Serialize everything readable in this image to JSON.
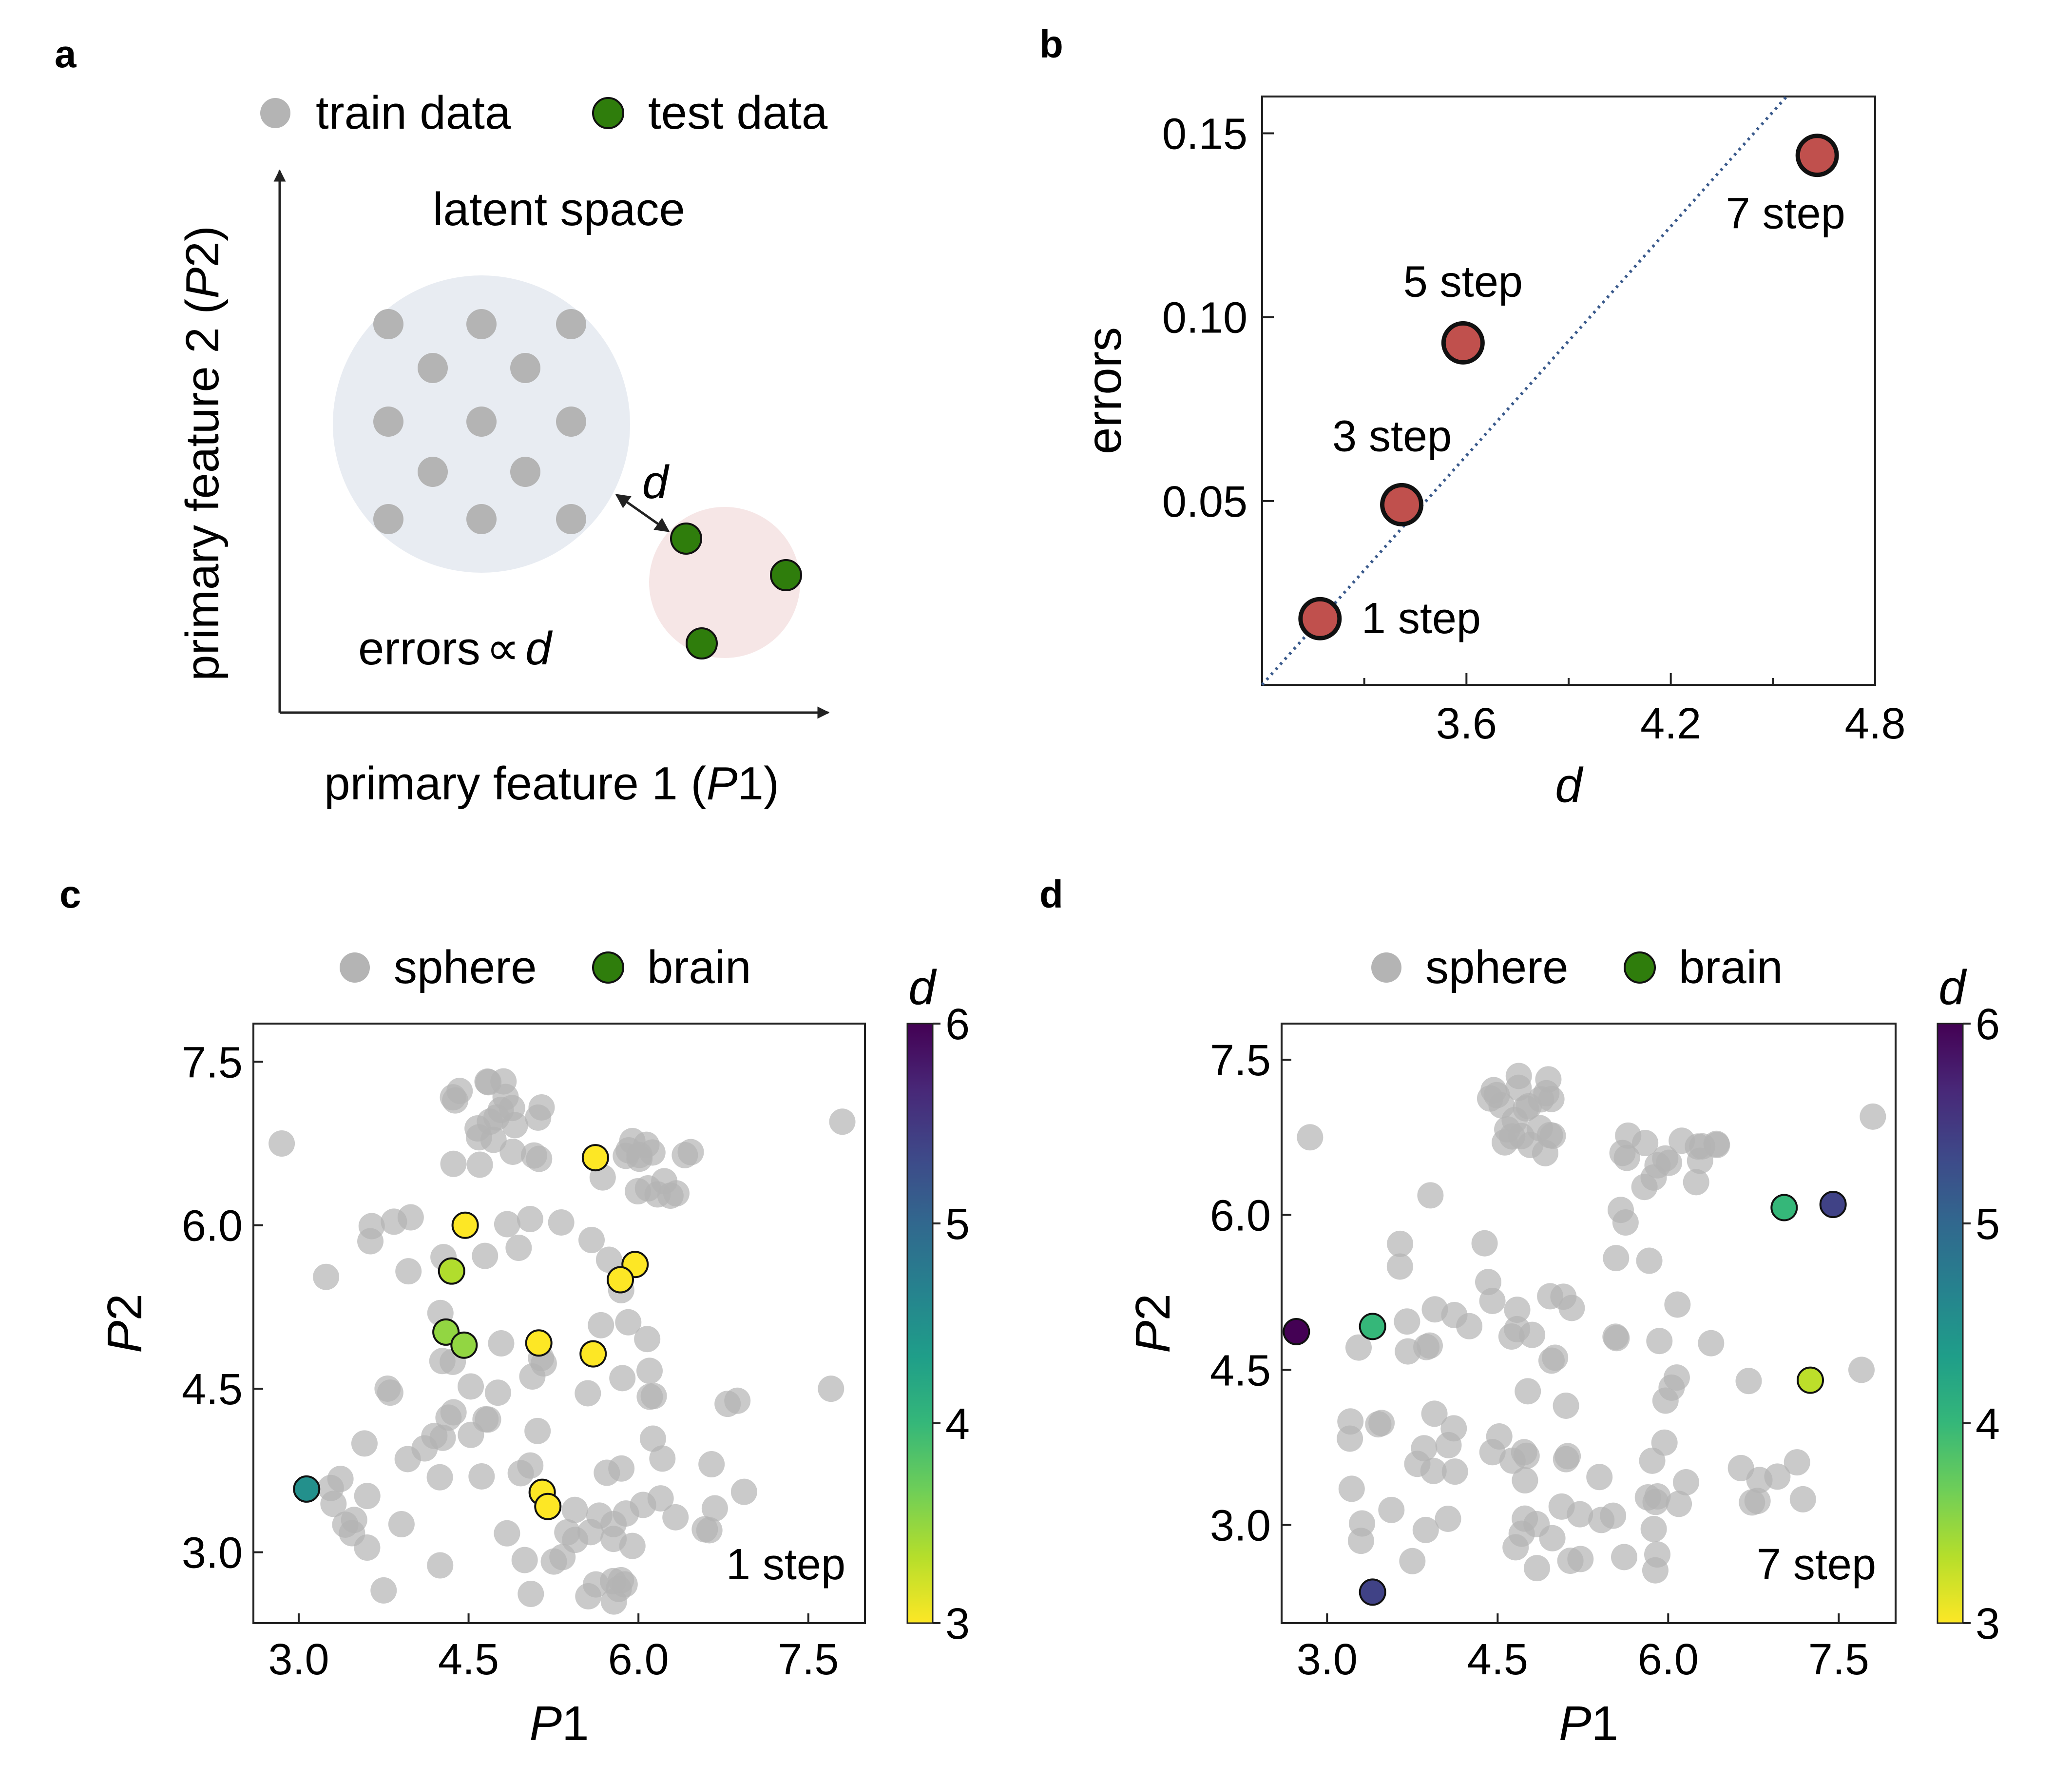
{
  "panels": {
    "a": {
      "label": "a",
      "legend": {
        "train": "train data",
        "test": "test data"
      },
      "title": "latent space",
      "d_label": "d",
      "errors_prefix": "errors",
      "errors_symbol": "∝",
      "errors_suffix": "d",
      "xlabel_prefix": "primary feature 1 (",
      "xlabel_var": "P",
      "xlabel_suffix": "1)",
      "ylabel_prefix": "primary feature 2 (",
      "ylabel_var": "P",
      "ylabel_suffix": "2)"
    },
    "b": {
      "label": "b"
    },
    "c": {
      "label": "c"
    },
    "d": {
      "label": "d"
    }
  },
  "colors": {
    "train": "#b4b4b4",
    "test": "#2f7d0c",
    "cluster_train": "#e8ecf2",
    "cluster_test": "#f6e6e6",
    "error_point": "#c0504d",
    "diag_line": "#3a5a8c",
    "viridis": [
      "#fde725",
      "#b5de2b",
      "#6ece58",
      "#35b779",
      "#1f9e89",
      "#26828e",
      "#31688e",
      "#3e4989",
      "#482878",
      "#440154"
    ]
  },
  "chart_data": [
    {
      "id": "b",
      "type": "scatter",
      "xlabel": "d",
      "ylabel": "errors",
      "xlim": [
        3.0,
        4.8
      ],
      "ylim": [
        0.0,
        0.16
      ],
      "xticks": [
        "3.6",
        "4.2",
        "4.8"
      ],
      "xtick_values": [
        3.6,
        4.2,
        4.8
      ],
      "yticks": [
        "0.05",
        "0.10",
        "0.15"
      ],
      "ytick_values": [
        0.05,
        0.1,
        0.15
      ],
      "points": [
        {
          "label": "1 step",
          "x": 3.17,
          "y": 0.018
        },
        {
          "label": "3 step",
          "x": 3.41,
          "y": 0.049
        },
        {
          "label": "5 step",
          "x": 3.59,
          "y": 0.093
        },
        {
          "label": "7 step",
          "x": 4.63,
          "y": 0.144
        }
      ],
      "fit_line": {
        "x": [
          3.0,
          4.54
        ],
        "y": [
          0.0,
          0.16
        ]
      }
    },
    {
      "id": "c",
      "type": "scatter",
      "legend": [
        "sphere",
        "brain"
      ],
      "xlabel": "P1",
      "ylabel": "P2",
      "xlim": [
        2.6,
        8.0
      ],
      "ylim": [
        2.35,
        7.85
      ],
      "xticks": [
        "3.0",
        "4.5",
        "6.0",
        "7.5"
      ],
      "xtick_values": [
        3.0,
        4.5,
        6.0,
        7.5
      ],
      "yticks": [
        "3.0",
        "4.5",
        "6.0",
        "7.5"
      ],
      "ytick_values": [
        3.0,
        4.5,
        6.0,
        7.5
      ],
      "annotation": "1 step",
      "colorbar": {
        "label": "d",
        "min": 3,
        "max": 6,
        "ticks": [
          "3",
          "4",
          "5",
          "6"
        ]
      },
      "brain": [
        {
          "x": 5.62,
          "y": 6.62,
          "d": 3.0
        },
        {
          "x": 4.47,
          "y": 6.0,
          "d": 3.0
        },
        {
          "x": 4.35,
          "y": 5.58,
          "d": 3.35
        },
        {
          "x": 5.97,
          "y": 5.64,
          "d": 3.0
        },
        {
          "x": 5.84,
          "y": 5.5,
          "d": 3.0
        },
        {
          "x": 4.3,
          "y": 5.02,
          "d": 3.5
        },
        {
          "x": 4.46,
          "y": 4.9,
          "d": 3.5
        },
        {
          "x": 5.12,
          "y": 4.92,
          "d": 3.0
        },
        {
          "x": 5.6,
          "y": 4.82,
          "d": 3.0
        },
        {
          "x": 3.07,
          "y": 3.58,
          "d": 4.5
        },
        {
          "x": 5.15,
          "y": 3.55,
          "d": 3.0
        },
        {
          "x": 5.2,
          "y": 3.42,
          "d": 3.0
        }
      ]
    },
    {
      "id": "d",
      "type": "scatter",
      "legend": [
        "sphere",
        "brain"
      ],
      "xlabel": "P1",
      "ylabel": "P2",
      "xlim": [
        2.6,
        8.0
      ],
      "ylim": [
        2.05,
        7.85
      ],
      "xticks": [
        "3.0",
        "4.5",
        "6.0",
        "7.5"
      ],
      "xtick_values": [
        3.0,
        4.5,
        6.0,
        7.5
      ],
      "yticks": [
        "3.0",
        "4.5",
        "6.0",
        "7.5"
      ],
      "ytick_values": [
        3.0,
        4.5,
        6.0,
        7.5
      ],
      "annotation": "7 step",
      "colorbar": {
        "label": "d",
        "min": 3,
        "max": 6,
        "ticks": [
          "3",
          "4",
          "5",
          "6"
        ]
      },
      "brain": [
        {
          "x": 2.73,
          "y": 4.87,
          "d": 6.0
        },
        {
          "x": 3.4,
          "y": 4.92,
          "d": 4.0
        },
        {
          "x": 3.4,
          "y": 2.35,
          "d": 5.4
        },
        {
          "x": 7.02,
          "y": 6.07,
          "d": 4.0
        },
        {
          "x": 7.45,
          "y": 6.1,
          "d": 5.4
        },
        {
          "x": 7.25,
          "y": 4.4,
          "d": 3.3
        }
      ]
    }
  ]
}
